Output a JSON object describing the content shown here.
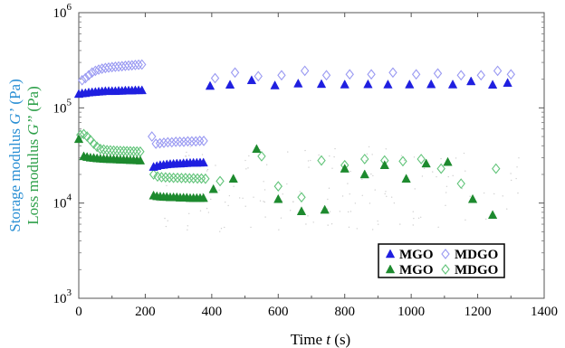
{
  "chart_data": {
    "type": "scatter",
    "xlabel": "Time t (s)",
    "xlabel_main": "Time ",
    "xlabel_var": "t",
    "xlabel_unit": " (s)",
    "ylabel_storage": "Storage modulus G’ (Pa)",
    "ylabel_storage_text": "Storage modulus ",
    "ylabel_storage_var": "G’",
    "ylabel_storage_unit": " (Pa)",
    "ylabel_loss": "Loss modulus G’’ (Pa)",
    "ylabel_loss_text": "Loss modulus ",
    "ylabel_loss_var": "G’’",
    "ylabel_loss_unit": " (Pa)",
    "xlim": [
      0,
      1400
    ],
    "ylim": [
      1000,
      1000000
    ],
    "yscale": "log",
    "x_ticks": [
      "0",
      "200",
      "400",
      "600",
      "800",
      "1000",
      "1200",
      "1400"
    ],
    "x_tick_values": [
      0,
      200,
      400,
      600,
      800,
      1000,
      1200,
      1400
    ],
    "y_ticks": [
      {
        "value": 1000,
        "base": "10",
        "exp": "3"
      },
      {
        "value": 10000,
        "base": "10",
        "exp": "4"
      },
      {
        "value": 100000,
        "base": "10",
        "exp": "5"
      },
      {
        "value": 1000000,
        "base": "10",
        "exp": "6"
      }
    ],
    "legend": {
      "placement": "bottom-right",
      "entries": [
        {
          "label": "MGO",
          "series": 0
        },
        {
          "label": "MDGO",
          "series": 1
        },
        {
          "label": "MGO",
          "series": 2
        },
        {
          "label": "MDGO",
          "series": 3
        }
      ]
    },
    "series": [
      {
        "name": "MGO",
        "modulus": "G’",
        "marker": "filled-triangle",
        "color": "#1f1fe0",
        "x": [
          0,
          10,
          20,
          30,
          40,
          50,
          60,
          70,
          80,
          90,
          100,
          110,
          120,
          130,
          140,
          150,
          160,
          170,
          180,
          190,
          225,
          235,
          245,
          255,
          265,
          275,
          285,
          295,
          305,
          315,
          325,
          335,
          345,
          355,
          365,
          375,
          395,
          455,
          520,
          590,
          660,
          730,
          800,
          870,
          930,
          995,
          1060,
          1125,
          1180,
          1245,
          1290
        ],
        "y": [
          140000,
          142000,
          143000,
          145000,
          146000,
          147000,
          148000,
          149000,
          150000,
          150000,
          150000,
          150000,
          151000,
          151000,
          152000,
          152000,
          152000,
          153000,
          153000,
          153000,
          24000,
          24500,
          25000,
          25200,
          25500,
          25700,
          25800,
          26000,
          26000,
          26200,
          26300,
          26400,
          26500,
          26500,
          26600,
          26600,
          170000,
          175000,
          195000,
          172000,
          180000,
          178000,
          176000,
          177000,
          176000,
          176000,
          177000,
          176000,
          190000,
          175000,
          183000
        ]
      },
      {
        "name": "MDGO",
        "modulus": "G’",
        "marker": "open-diamond",
        "color": "#9a9af2",
        "x": [
          10,
          20,
          30,
          40,
          50,
          60,
          70,
          80,
          90,
          100,
          110,
          120,
          130,
          140,
          150,
          160,
          170,
          180,
          190,
          220,
          232,
          244,
          256,
          268,
          280,
          292,
          304,
          316,
          328,
          340,
          352,
          364,
          376,
          410,
          470,
          540,
          610,
          680,
          745,
          815,
          880,
          945,
          1015,
          1080,
          1150,
          1210,
          1260,
          1300
        ],
        "y": [
          195000,
          205000,
          220000,
          235000,
          245000,
          252000,
          258000,
          262000,
          265000,
          268000,
          270000,
          272000,
          274000,
          276000,
          278000,
          280000,
          282000,
          284000,
          285000,
          50000,
          42000,
          42500,
          43000,
          43500,
          43500,
          44000,
          44000,
          44000,
          44500,
          44500,
          44500,
          45000,
          45000,
          205000,
          235000,
          215000,
          220000,
          245000,
          220000,
          225000,
          225000,
          235000,
          225000,
          230000,
          220000,
          220000,
          245000,
          225000
        ]
      },
      {
        "name": "MGO",
        "modulus": "G’’",
        "marker": "filled-triangle",
        "color": "#1d8a2e",
        "x": [
          0,
          15,
          25,
          35,
          45,
          55,
          65,
          75,
          85,
          95,
          105,
          115,
          125,
          135,
          145,
          155,
          165,
          175,
          185,
          225,
          235,
          245,
          255,
          265,
          275,
          285,
          295,
          305,
          315,
          325,
          335,
          345,
          355,
          365,
          375,
          405,
          465,
          535,
          600,
          670,
          740,
          800,
          860,
          920,
          985,
          1045,
          1110,
          1185,
          1245
        ],
        "y": [
          47000,
          31000,
          30500,
          30000,
          29800,
          29500,
          29300,
          29100,
          29000,
          28900,
          28800,
          28700,
          28600,
          28500,
          28400,
          28300,
          28200,
          28100,
          28000,
          12000,
          11800,
          11700,
          11600,
          11600,
          11500,
          11500,
          11500,
          11400,
          11400,
          11400,
          11300,
          11300,
          11300,
          11300,
          11300,
          14000,
          18000,
          37000,
          11000,
          8200,
          8500,
          23000,
          20000,
          25000,
          18000,
          26000,
          27000,
          11000,
          7500
        ]
      },
      {
        "name": "MDGO",
        "modulus": "G’’",
        "marker": "open-diamond",
        "color": "#62c47a",
        "x": [
          5,
          15,
          25,
          35,
          45,
          55,
          65,
          75,
          85,
          95,
          105,
          115,
          125,
          135,
          145,
          155,
          165,
          175,
          185,
          225,
          237,
          249,
          261,
          273,
          285,
          297,
          309,
          321,
          333,
          345,
          357,
          369,
          381,
          425,
          550,
          600,
          670,
          730,
          800,
          860,
          920,
          975,
          1030,
          1090,
          1150,
          1255
        ],
        "y": [
          52000,
          53000,
          50000,
          46000,
          42000,
          39000,
          37000,
          36500,
          36000,
          35800,
          35600,
          35400,
          35300,
          35200,
          35100,
          35000,
          34900,
          34800,
          34700,
          20000,
          19000,
          18700,
          18600,
          18500,
          18400,
          18400,
          18300,
          18300,
          18200,
          18200,
          18100,
          18100,
          18000,
          17000,
          31000,
          15000,
          11500,
          28000,
          25000,
          29000,
          28000,
          27500,
          29000,
          23000,
          16000,
          23000
        ]
      }
    ],
    "grid": false
  }
}
